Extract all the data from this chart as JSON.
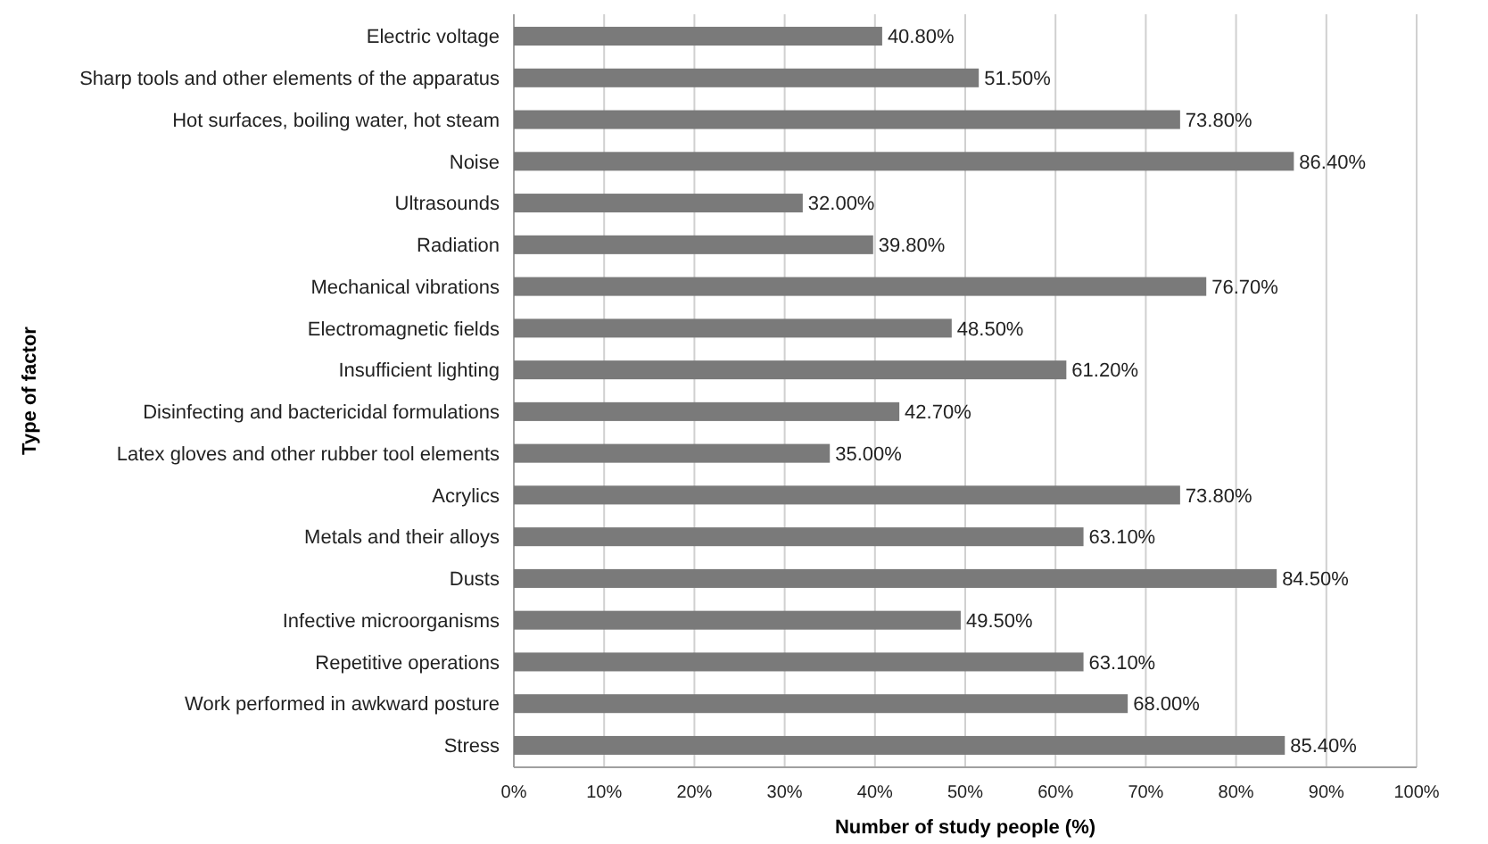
{
  "chart_data": {
    "type": "bar",
    "orientation": "horizontal",
    "xlabel": "Number of study people (%)",
    "ylabel": "Type of factor",
    "categories": [
      "Electric voltage",
      "Sharp tools and other elements of the apparatus",
      "Hot surfaces, boiling water, hot steam",
      "Noise",
      "Ultrasounds",
      "Radiation",
      "Mechanical vibrations",
      "Electromagnetic fields",
      "Insufficient lighting",
      "Disinfecting and bactericidal formulations",
      "Latex gloves and other rubber tool elements",
      "Acrylics",
      "Metals and their alloys",
      "Dusts",
      "Infective microorganisms",
      "Repetitive operations",
      "Work performed in awkward posture",
      "Stress"
    ],
    "values": [
      40.8,
      51.5,
      73.8,
      86.4,
      32.0,
      39.8,
      76.7,
      48.5,
      61.2,
      42.7,
      35.0,
      73.8,
      63.1,
      84.5,
      49.5,
      63.1,
      68.0,
      85.4
    ],
    "value_labels": [
      "40.80%",
      "51.50%",
      "73.80%",
      "86.40%",
      "32.00%",
      "39.80%",
      "76.70%",
      "48.50%",
      "61.20%",
      "42.70%",
      "35.00%",
      "73.80%",
      "63.10%",
      "84.50%",
      "49.50%",
      "63.10%",
      "68.00%",
      "85.40%"
    ],
    "color": "#7a7a7a",
    "xlim": [
      0,
      100
    ],
    "xticks": [
      {
        "value": 0,
        "label": "0%"
      },
      {
        "value": 10,
        "label": "10%"
      },
      {
        "value": 20,
        "label": "20%"
      },
      {
        "value": 30,
        "label": "30%"
      },
      {
        "value": 40,
        "label": "40%"
      },
      {
        "value": 50,
        "label": "50%"
      },
      {
        "value": 60,
        "label": "60%"
      },
      {
        "value": 70,
        "label": "70%"
      },
      {
        "value": 80,
        "label": "80%"
      },
      {
        "value": 90,
        "label": "90%"
      },
      {
        "value": 100,
        "label": "100%"
      }
    ],
    "grid": "x"
  }
}
